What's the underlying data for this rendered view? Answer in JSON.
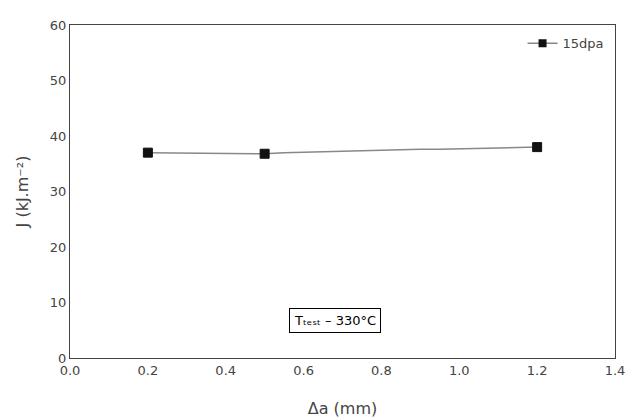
{
  "chart_data": {
    "type": "line",
    "xlabel": "Δa (mm)",
    "ylabel": "J (kJ.m⁻²)",
    "x": [
      0.2,
      0.5,
      0.55,
      0.6,
      0.65,
      0.7,
      0.75,
      0.8,
      0.85,
      0.9,
      0.95,
      1.0,
      1.05,
      1.1,
      1.15,
      1.2
    ],
    "series": [
      {
        "name": "15dpa",
        "color": "#888888",
        "values": [
          37.0,
          36.8,
          37.0,
          37.1,
          37.2,
          37.3,
          37.4,
          37.4,
          37.5,
          37.6,
          37.6,
          37.7,
          37.7,
          37.8,
          37.9,
          38.0
        ]
      },
      {
        "type": "scatter",
        "marker": "square",
        "color": "#111111",
        "x": [
          0.2,
          0.5,
          1.2
        ],
        "values": [
          37.0,
          36.8,
          38.0
        ]
      }
    ],
    "annotations": [
      {
        "text": "Tₜₑₛₜ – 330°C",
        "x": 0.68,
        "y": 4.5
      }
    ],
    "xlim": [
      0,
      1.4
    ],
    "ylim": [
      0,
      60
    ],
    "xticks": [
      {
        "value": 0,
        "label": "0.0"
      },
      0.2,
      0.4,
      0.6,
      0.8,
      {
        "value": 1.0,
        "label": "1.0"
      },
      1.2,
      1.4
    ],
    "yticks": [
      0,
      10,
      20,
      30,
      40,
      50,
      60
    ],
    "legend": "upper right",
    "grid": false
  }
}
